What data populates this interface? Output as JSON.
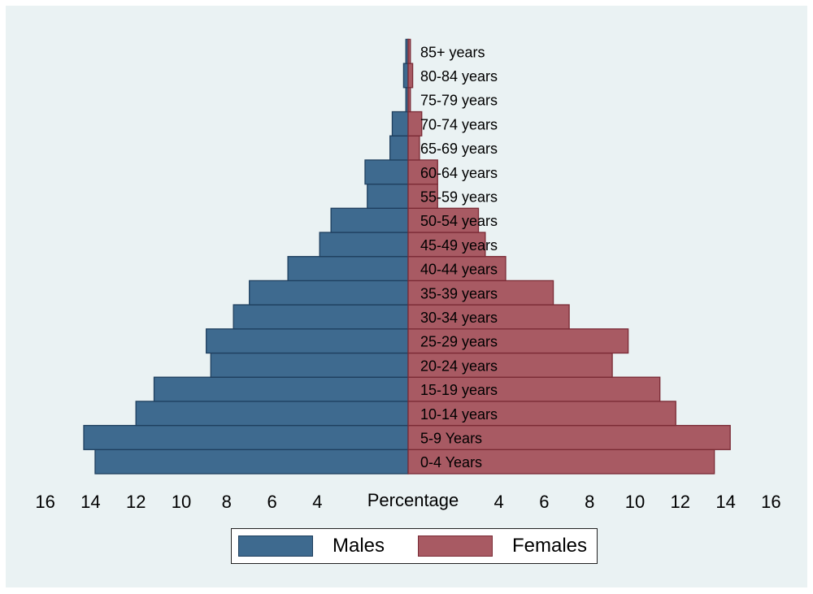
{
  "chart_data": {
    "type": "bar",
    "orientation": "horizontal-population-pyramid",
    "categories": [
      "0-4 Years",
      "5-9 Years",
      "10-14 years",
      "15-19 years",
      "20-24 years",
      "25-29 years",
      "30-34 years",
      "35-39 years",
      "40-44 years",
      "45-49 years",
      "50-54 years",
      "55-59 years",
      "60-64 years",
      "65-69 years",
      "70-74 years",
      "75-79 years",
      "80-84 years",
      "85+ years"
    ],
    "series": [
      {
        "name": "Males",
        "color": "#3e6a8f",
        "border": "#1e3f5e",
        "values": [
          13.8,
          14.3,
          12.0,
          11.2,
          8.7,
          8.9,
          7.7,
          7.0,
          5.3,
          3.9,
          3.4,
          1.8,
          1.9,
          0.8,
          0.7,
          0.1,
          0.2,
          0.1
        ]
      },
      {
        "name": "Females",
        "color": "#a85a63",
        "border": "#7a2a35",
        "values": [
          13.5,
          14.2,
          11.8,
          11.1,
          9.0,
          9.7,
          7.1,
          6.4,
          4.3,
          3.4,
          3.1,
          1.3,
          1.3,
          0.5,
          0.6,
          0.1,
          0.2,
          0.1
        ]
      }
    ],
    "x_ticks_left": [
      "16",
      "14",
      "12",
      "10",
      "8",
      "6",
      "4"
    ],
    "x_ticks_right": [
      "4",
      "6",
      "8",
      "10",
      "12",
      "14",
      "16"
    ],
    "xlabel": "Percentage",
    "xlim": [
      -16,
      16
    ],
    "legend_position": "bottom-center"
  },
  "legend": {
    "males_label": "Males",
    "females_label": "Females"
  }
}
